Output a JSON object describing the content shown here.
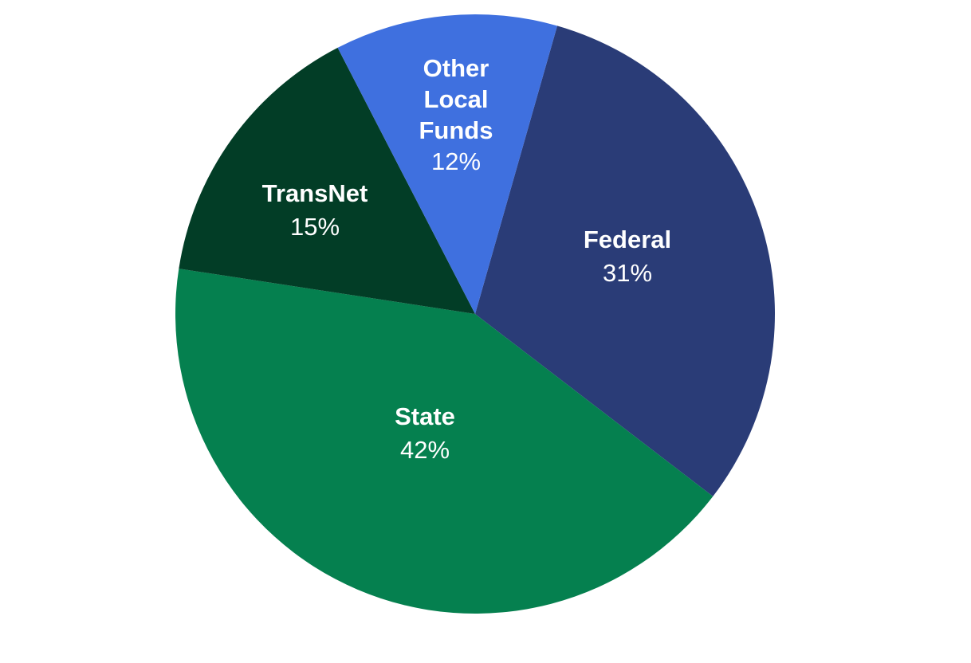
{
  "chart_data": {
    "type": "pie",
    "title": "",
    "start_angle_deg": 15.9,
    "direction": "clockwise",
    "slices": [
      {
        "label": "Federal",
        "value": 31,
        "value_label": "31%",
        "color": "#2A3C77"
      },
      {
        "label": "State",
        "value": 42,
        "value_label": "42%",
        "color": "#05804F"
      },
      {
        "label": "TransNet",
        "value": 15,
        "value_label": "15%",
        "color": "#023D26"
      },
      {
        "label": "Other Local Funds",
        "value": 12,
        "value_label": "12%",
        "color": "#3F70DF"
      }
    ],
    "legend": "none",
    "data_labels": "inside"
  }
}
